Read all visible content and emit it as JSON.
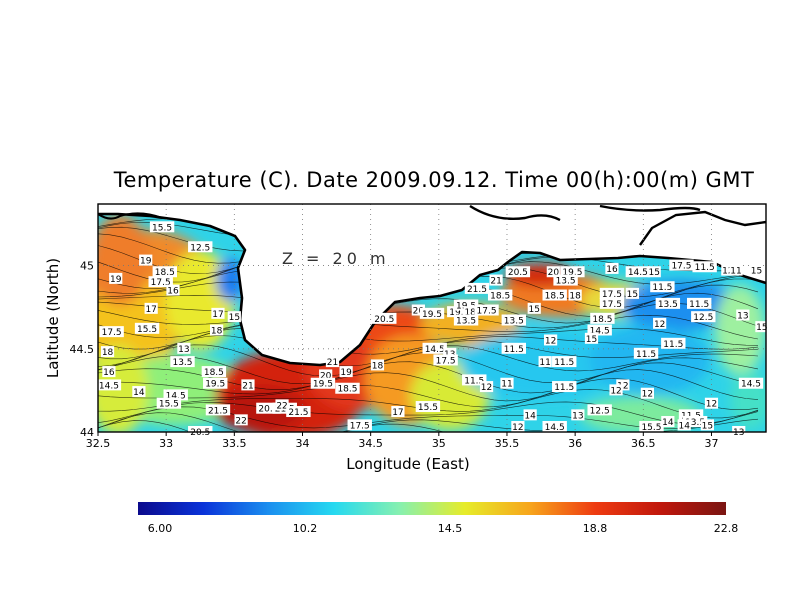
{
  "title": "Temperature (C). Date 2009.09.12. Time 00(h):00(m) GMT",
  "depth_label": "Z = 20 m",
  "x_axis": {
    "label": "Longitude (East)",
    "ticks": [
      "32.5",
      "33",
      "33.5",
      "34",
      "34.5",
      "35",
      "35.5",
      "36",
      "36.5",
      "37"
    ],
    "range": [
      32.5,
      37.4
    ]
  },
  "y_axis": {
    "label": "Latitude (North)",
    "ticks": [
      "44",
      "44.5",
      "45"
    ],
    "range": [
      44.0,
      45.37
    ]
  },
  "colorbar": {
    "min": 6.0,
    "max": 22.8,
    "labels": [
      "6.00",
      "10.2",
      "14.5",
      "18.8",
      "22.8"
    ],
    "colors": [
      "#0b0a8c",
      "#0a33d9",
      "#1b8fef",
      "#26d9f0",
      "#86f0b0",
      "#e6ec2a",
      "#f7a51c",
      "#ee3b11",
      "#c0170c",
      "#7a1512"
    ]
  },
  "contour_labels": [
    {
      "t": "15.5",
      "lon": 32.97,
      "lat": 45.23
    },
    {
      "t": "19",
      "lon": 32.85,
      "lat": 45.03
    },
    {
      "t": "12.5",
      "lon": 33.25,
      "lat": 45.11
    },
    {
      "t": "19",
      "lon": 32.63,
      "lat": 44.92
    },
    {
      "t": "18.5",
      "lon": 32.99,
      "lat": 44.96
    },
    {
      "t": "17.5",
      "lon": 32.96,
      "lat": 44.9
    },
    {
      "t": "16",
      "lon": 33.05,
      "lat": 44.85
    },
    {
      "t": "17",
      "lon": 32.89,
      "lat": 44.74
    },
    {
      "t": "17.5",
      "lon": 32.6,
      "lat": 44.6
    },
    {
      "t": "15.5",
      "lon": 32.86,
      "lat": 44.62
    },
    {
      "t": "17",
      "lon": 33.38,
      "lat": 44.71
    },
    {
      "t": "15",
      "lon": 33.5,
      "lat": 44.69
    },
    {
      "t": "18",
      "lon": 33.37,
      "lat": 44.61
    },
    {
      "t": "18",
      "lon": 32.57,
      "lat": 44.48
    },
    {
      "t": "13",
      "lon": 33.13,
      "lat": 44.5
    },
    {
      "t": "13.5",
      "lon": 33.12,
      "lat": 44.42
    },
    {
      "t": "16",
      "lon": 32.58,
      "lat": 44.36
    },
    {
      "t": "14.5",
      "lon": 32.58,
      "lat": 44.28
    },
    {
      "t": "18.5",
      "lon": 33.35,
      "lat": 44.36
    },
    {
      "t": "19.5",
      "lon": 33.36,
      "lat": 44.29
    },
    {
      "t": "14",
      "lon": 32.8,
      "lat": 44.24
    },
    {
      "t": "14.5",
      "lon": 33.07,
      "lat": 44.22
    },
    {
      "t": "15.5",
      "lon": 33.02,
      "lat": 44.17
    },
    {
      "t": "21",
      "lon": 33.6,
      "lat": 44.28
    },
    {
      "t": "21.5",
      "lon": 33.38,
      "lat": 44.13
    },
    {
      "t": "20.5",
      "lon": 33.75,
      "lat": 44.14
    },
    {
      "t": "21.5",
      "lon": 33.87,
      "lat": 44.14
    },
    {
      "t": "22",
      "lon": 33.85,
      "lat": 44.16
    },
    {
      "t": "21.5",
      "lon": 33.97,
      "lat": 44.12
    },
    {
      "t": "22",
      "lon": 33.55,
      "lat": 44.07
    },
    {
      "t": "20.5",
      "lon": 33.25,
      "lat": 44.0
    },
    {
      "t": "21",
      "lon": 34.22,
      "lat": 44.42
    },
    {
      "t": "19",
      "lon": 34.32,
      "lat": 44.36
    },
    {
      "t": "20",
      "lon": 34.17,
      "lat": 44.34
    },
    {
      "t": "19.5",
      "lon": 34.15,
      "lat": 44.29
    },
    {
      "t": "18.5",
      "lon": 34.33,
      "lat": 44.26
    },
    {
      "t": "18",
      "lon": 34.55,
      "lat": 44.4
    },
    {
      "t": "20.5",
      "lon": 34.6,
      "lat": 44.68
    },
    {
      "t": "17.5",
      "lon": 34.42,
      "lat": 44.04
    },
    {
      "t": "17",
      "lon": 34.7,
      "lat": 44.12
    },
    {
      "t": "15.5",
      "lon": 34.92,
      "lat": 44.15
    },
    {
      "t": "20",
      "lon": 34.85,
      "lat": 44.73
    },
    {
      "t": "19.5",
      "lon": 34.95,
      "lat": 44.71
    },
    {
      "t": "19.5",
      "lon": 35.15,
      "lat": 44.72
    },
    {
      "t": "14.5",
      "lon": 34.97,
      "lat": 44.5
    },
    {
      "t": "13",
      "lon": 35.08,
      "lat": 44.47
    },
    {
      "t": "17.5",
      "lon": 35.05,
      "lat": 44.43
    },
    {
      "t": "11.5",
      "lon": 35.26,
      "lat": 44.31
    },
    {
      "t": "12",
      "lon": 35.35,
      "lat": 44.27
    },
    {
      "t": "11",
      "lon": 35.5,
      "lat": 44.29
    },
    {
      "t": "21.5",
      "lon": 35.28,
      "lat": 44.86
    },
    {
      "t": "21",
      "lon": 35.42,
      "lat": 44.91
    },
    {
      "t": "20.5",
      "lon": 35.58,
      "lat": 44.96
    },
    {
      "t": "18.5",
      "lon": 35.45,
      "lat": 44.82
    },
    {
      "t": "19.5",
      "lon": 35.2,
      "lat": 44.76
    },
    {
      "t": "18",
      "lon": 35.23,
      "lat": 44.72
    },
    {
      "t": "17.5",
      "lon": 35.35,
      "lat": 44.73
    },
    {
      "t": "13.5",
      "lon": 35.2,
      "lat": 44.67
    },
    {
      "t": "13.5",
      "lon": 35.55,
      "lat": 44.67
    },
    {
      "t": "15",
      "lon": 35.7,
      "lat": 44.74
    },
    {
      "t": "20",
      "lon": 35.84,
      "lat": 44.96
    },
    {
      "t": "19.5",
      "lon": 35.98,
      "lat": 44.96
    },
    {
      "t": "13.5",
      "lon": 35.93,
      "lat": 44.91
    },
    {
      "t": "18.5",
      "lon": 35.85,
      "lat": 44.82
    },
    {
      "t": "18",
      "lon": 36.0,
      "lat": 44.82
    },
    {
      "t": "16",
      "lon": 36.27,
      "lat": 44.98
    },
    {
      "t": "14.5",
      "lon": 36.46,
      "lat": 44.96
    },
    {
      "t": "15",
      "lon": 36.58,
      "lat": 44.96
    },
    {
      "t": "17.5",
      "lon": 36.27,
      "lat": 44.83
    },
    {
      "t": "17.5",
      "lon": 36.27,
      "lat": 44.77
    },
    {
      "t": "15",
      "lon": 36.42,
      "lat": 44.83
    },
    {
      "t": "11.5",
      "lon": 36.64,
      "lat": 44.87
    },
    {
      "t": "13.5",
      "lon": 36.68,
      "lat": 44.77
    },
    {
      "t": "11.5",
      "lon": 36.91,
      "lat": 44.77
    },
    {
      "t": "12.5",
      "lon": 36.94,
      "lat": 44.69
    },
    {
      "t": "18.5",
      "lon": 36.2,
      "lat": 44.68
    },
    {
      "t": "14.5",
      "lon": 36.18,
      "lat": 44.61
    },
    {
      "t": "15",
      "lon": 36.12,
      "lat": 44.56
    },
    {
      "t": "12",
      "lon": 35.82,
      "lat": 44.55
    },
    {
      "t": "12",
      "lon": 36.62,
      "lat": 44.65
    },
    {
      "t": "11.5",
      "lon": 36.72,
      "lat": 44.53
    },
    {
      "t": "11.5",
      "lon": 35.55,
      "lat": 44.5
    },
    {
      "t": "11",
      "lon": 35.78,
      "lat": 44.42
    },
    {
      "t": "11.5",
      "lon": 35.92,
      "lat": 44.42
    },
    {
      "t": "11.5",
      "lon": 36.52,
      "lat": 44.47
    },
    {
      "t": "11.5",
      "lon": 35.92,
      "lat": 44.27
    },
    {
      "t": "12",
      "lon": 36.35,
      "lat": 44.28
    },
    {
      "t": "12",
      "lon": 36.53,
      "lat": 44.23
    },
    {
      "t": "12",
      "lon": 36.3,
      "lat": 44.25
    },
    {
      "t": "12.5",
      "lon": 36.18,
      "lat": 44.13
    },
    {
      "t": "12",
      "lon": 37.0,
      "lat": 44.17
    },
    {
      "t": "13",
      "lon": 36.02,
      "lat": 44.1
    },
    {
      "t": "14",
      "lon": 35.67,
      "lat": 44.1
    },
    {
      "t": "14.5",
      "lon": 35.85,
      "lat": 44.03
    },
    {
      "t": "12",
      "lon": 35.58,
      "lat": 44.03
    },
    {
      "t": "15.5",
      "lon": 36.56,
      "lat": 44.03
    },
    {
      "t": "14",
      "lon": 36.68,
      "lat": 44.06
    },
    {
      "t": "11.5",
      "lon": 36.85,
      "lat": 44.1
    },
    {
      "t": "13.5",
      "lon": 36.88,
      "lat": 44.06
    },
    {
      "t": "14",
      "lon": 36.8,
      "lat": 44.04
    },
    {
      "t": "15",
      "lon": 36.97,
      "lat": 44.04
    },
    {
      "t": "13",
      "lon": 37.2,
      "lat": 44.0
    },
    {
      "t": "13",
      "lon": 37.23,
      "lat": 44.7
    },
    {
      "t": "15",
      "lon": 37.37,
      "lat": 44.63
    },
    {
      "t": "11.5",
      "lon": 36.95,
      "lat": 44.99
    },
    {
      "t": "12",
      "lon": 37.12,
      "lat": 44.97
    },
    {
      "t": "11",
      "lon": 37.18,
      "lat": 44.97
    },
    {
      "t": "15",
      "lon": 37.33,
      "lat": 44.97
    },
    {
      "t": "17.5",
      "lon": 36.78,
      "lat": 45.0
    },
    {
      "t": "14.5",
      "lon": 37.29,
      "lat": 44.29
    }
  ]
}
